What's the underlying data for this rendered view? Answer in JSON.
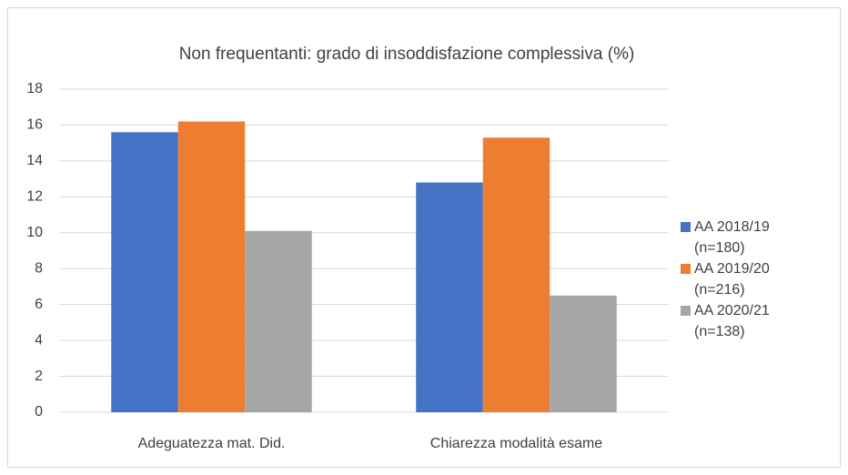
{
  "chart_data": {
    "type": "bar",
    "title": "Non frequentanti: grado di insoddisfazione complessiva (%)",
    "categories": [
      "Adeguatezza mat. Did.",
      "Chiarezza modalità esame"
    ],
    "series": [
      {
        "name": "AA 2018/19 (n=180)",
        "color": "#4472c4",
        "values": [
          15.6,
          12.8
        ]
      },
      {
        "name": "AA 2019/20 (n=216)",
        "color": "#ed7d31",
        "values": [
          16.2,
          15.3
        ]
      },
      {
        "name": "AA 2020/21 (n=138)",
        "color": "#a5a5a5",
        "values": [
          10.1,
          6.5
        ]
      }
    ],
    "ylim": [
      0,
      18
    ],
    "yticks": [
      0,
      2,
      4,
      6,
      8,
      10,
      12,
      14,
      16,
      18
    ],
    "grid": true,
    "legend": "right"
  }
}
